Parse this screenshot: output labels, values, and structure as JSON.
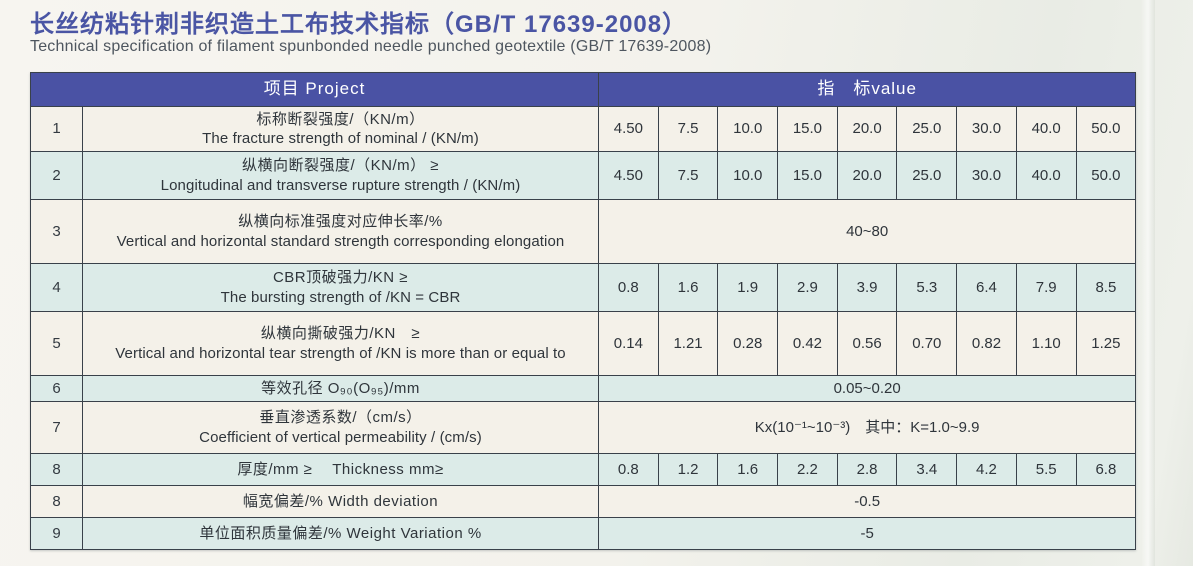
{
  "colors": {
    "title": "#4a55a4",
    "header_bg": "#4a52a4",
    "row_cream": "#f4f1e9",
    "row_teal": "#dcebe8"
  },
  "page": {
    "title": "长丝纺粘针刺非织造土工布技术指标（GB/T 17639-2008）",
    "subtitle": "Technical specification of filament spunbonded needle punched geotextile (GB/T 17639-2008)"
  },
  "table": {
    "header": {
      "project": "项目 Project",
      "value": "指　标value"
    },
    "rows": [
      {
        "no": "1",
        "zh": "标称断裂强度/（KN/m）",
        "en": "The fracture strength of nominal / (KN/m)",
        "tint": "cream",
        "h": "r-h45",
        "values": [
          "4.50",
          "7.5",
          "10.0",
          "15.0",
          "20.0",
          "25.0",
          "30.0",
          "40.0",
          "50.0"
        ]
      },
      {
        "no": "2",
        "zh": "纵横向断裂强度/（KN/m） ≥",
        "en": "Longitudinal and transverse rupture strength / (KN/m)",
        "tint": "teal",
        "h": "r-h48",
        "values": [
          "4.50",
          "7.5",
          "10.0",
          "15.0",
          "20.0",
          "25.0",
          "30.0",
          "40.0",
          "50.0"
        ]
      },
      {
        "no": "3",
        "zh": "纵横向标准强度对应伸长率/%",
        "en": "Vertical and horizontal standard strength corresponding elongation",
        "tint": "cream",
        "h": "r-h64",
        "span_value": "40~80"
      },
      {
        "no": "4",
        "zh": "CBR顶破强力/KN  ≥",
        "en": "The bursting strength of /KN = CBR",
        "tint": "teal",
        "h": "r-h48",
        "values": [
          "0.8",
          "1.6",
          "1.9",
          "2.9",
          "3.9",
          "5.3",
          "6.4",
          "7.9",
          "8.5"
        ]
      },
      {
        "no": "5",
        "zh": "纵横向撕破强力/KN　≥",
        "en": "Vertical and horizontal tear strength of /KN is more than or equal to",
        "tint": "cream",
        "h": "r-h64",
        "values": [
          "0.14",
          "1.21",
          "0.28",
          "0.42",
          "0.56",
          "0.70",
          "0.82",
          "1.10",
          "1.25"
        ]
      },
      {
        "no": "6",
        "zh": "等效孔径  O₉₀(O₉₅)/mm",
        "en": "",
        "tint": "teal",
        "h": "r-h26",
        "span_value": "0.05~0.20"
      },
      {
        "no": "7",
        "zh": "垂直渗透系数/（cm/s）",
        "en": "Coefficient of vertical permeability / (cm/s)",
        "tint": "cream",
        "h": "r-h52",
        "span_value": "Kx(10⁻¹~10⁻³)　其中：K=1.0~9.9"
      },
      {
        "no": "8",
        "zh": "厚度/mm ≥　 Thickness  mm≥",
        "en": "",
        "tint": "teal",
        "h": "r-h32",
        "values": [
          "0.8",
          "1.2",
          "1.6",
          "2.2",
          "2.8",
          "3.4",
          "4.2",
          "5.5",
          "6.8"
        ]
      },
      {
        "no": "8",
        "zh": "幅宽偏差/%  Width deviation",
        "en": "",
        "tint": "cream",
        "h": "r-h32",
        "span_value": "-0.5"
      },
      {
        "no": "9",
        "zh": "单位面积质量偏差/%  Weight Variation %",
        "en": "",
        "tint": "teal",
        "h": "r-h32",
        "span_value": "-5"
      }
    ]
  }
}
